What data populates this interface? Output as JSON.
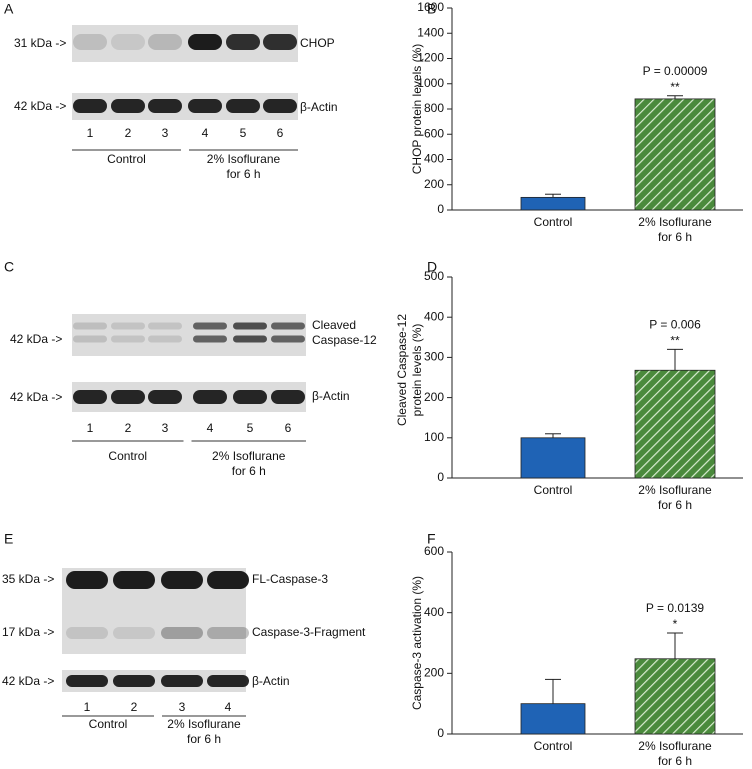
{
  "blots": [
    {
      "panel": "A",
      "rows": [
        {
          "marker": "31 kDa ->",
          "label": "CHOP"
        },
        {
          "marker": "42 kDa ->",
          "label": "β-Actin"
        }
      ],
      "lanes": [
        "1",
        "2",
        "3",
        "4",
        "5",
        "6"
      ],
      "groups": [
        "Control",
        "2% Isoflurane\nfor 6 h"
      ]
    },
    {
      "panel": "C",
      "rows": [
        {
          "marker": "42 kDa ->",
          "label": "Cleaved\nCaspase-12"
        },
        {
          "marker": "42 kDa ->",
          "label": "β-Actin"
        }
      ],
      "lanes": [
        "1",
        "2",
        "3",
        "4",
        "5",
        "6"
      ],
      "groups": [
        "Control",
        "2% Isoflurane\nfor 6 h"
      ]
    },
    {
      "panel": "E",
      "rows": [
        {
          "marker": "35 kDa ->",
          "label": "FL-Caspase-3"
        },
        {
          "marker": "17 kDa ->",
          "label": "Caspase-3-Fragment"
        },
        {
          "marker": "42 kDa ->",
          "label": "β-Actin"
        }
      ],
      "lanes": [
        "1",
        "2",
        "3",
        "4"
      ],
      "groups": [
        "Control",
        "2% Isoflurane\nfor 6 h"
      ]
    }
  ],
  "chart_data": [
    {
      "type": "bar",
      "panel": "B",
      "y_label": "CHOP protein levels (%)",
      "categories": [
        "Control",
        "2% Isoflurane\nfor 6 h"
      ],
      "values": [
        100,
        880
      ],
      "errors": [
        25,
        25
      ],
      "colors": [
        "#1f63b5",
        "#4a8a3c"
      ],
      "hatch": [
        false,
        true
      ],
      "annotations": [
        {
          "text": "P = 0.00009",
          "stars": "**"
        }
      ],
      "ylim": [
        0,
        1600
      ],
      "yticks": [
        0,
        200,
        400,
        600,
        800,
        1000,
        1200,
        1400,
        1600
      ]
    },
    {
      "type": "bar",
      "panel": "D",
      "y_label": "Cleaved Caspase-12\nprotein levels (%)",
      "categories": [
        "Control",
        "2% Isoflurane\nfor 6 h"
      ],
      "values": [
        100,
        268
      ],
      "errors": [
        10,
        52
      ],
      "colors": [
        "#1f63b5",
        "#4a8a3c"
      ],
      "hatch": [
        false,
        true
      ],
      "annotations": [
        {
          "text": "P = 0.006",
          "stars": "**"
        }
      ],
      "ylim": [
        0,
        500
      ],
      "yticks": [
        0,
        100,
        200,
        300,
        400,
        500
      ]
    },
    {
      "type": "bar",
      "panel": "F",
      "y_label": "Caspase-3 activation (%)",
      "categories": [
        "Control",
        "2% Isoflurane\nfor 6 h"
      ],
      "values": [
        100,
        248
      ],
      "errors": [
        80,
        85
      ],
      "colors": [
        "#1f63b5",
        "#4a8a3c"
      ],
      "hatch": [
        false,
        true
      ],
      "annotations": [
        {
          "text": "P = 0.0139",
          "stars": "*"
        }
      ],
      "ylim": [
        0,
        600
      ],
      "yticks": [
        0,
        200,
        400,
        600
      ]
    }
  ]
}
